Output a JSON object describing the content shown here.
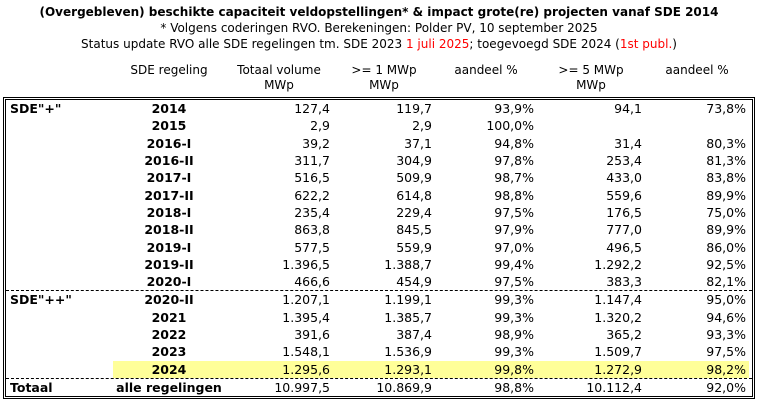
{
  "header": {
    "title": "(Overgebleven) beschikte capaciteit veldopstellingen* & impact grote(re) projecten vanaf SDE 2014",
    "subtitle": "* Volgens coderingen RVO. Berekeningen: Polder PV, 10 september 2025",
    "status_prefix": "Status update RVO alle SDE regelingen tm. SDE 2023 ",
    "status_date": "1 juli 2025",
    "status_mid": "; toegevoegd SDE 2024 (",
    "status_publ": "1st publ.",
    "status_suffix": ")"
  },
  "colors": {
    "highlight": "#ffff99",
    "accent_red": "#ff0000",
    "text": "#000000"
  },
  "table": {
    "columns": [
      {
        "label": "",
        "sub": ""
      },
      {
        "label": "SDE regeling",
        "sub": ""
      },
      {
        "label": "Totaal volume",
        "sub": "MWp"
      },
      {
        "label": ">= 1 MWp",
        "sub": "MWp"
      },
      {
        "label": "aandeel %",
        "sub": ""
      },
      {
        "label": ">= 5 MWp",
        "sub": "MWp"
      },
      {
        "label": "aandeel %",
        "sub": ""
      }
    ],
    "rows": [
      {
        "section": "SDE\"+\"",
        "regeling": "2014",
        "values": [
          "127,4",
          "119,7",
          "93,9%",
          "94,1",
          "73,8%"
        ]
      },
      {
        "section": "",
        "regeling": "2015",
        "values": [
          "2,9",
          "2,9",
          "100,0%",
          "",
          ""
        ]
      },
      {
        "section": "",
        "regeling": "2016-I",
        "values": [
          "39,2",
          "37,1",
          "94,8%",
          "31,4",
          "80,3%"
        ]
      },
      {
        "section": "",
        "regeling": "2016-II",
        "values": [
          "311,7",
          "304,9",
          "97,8%",
          "253,4",
          "81,3%"
        ]
      },
      {
        "section": "",
        "regeling": "2017-I",
        "values": [
          "516,5",
          "509,9",
          "98,7%",
          "433,0",
          "83,8%"
        ]
      },
      {
        "section": "",
        "regeling": "2017-II",
        "values": [
          "622,2",
          "614,8",
          "98,8%",
          "559,6",
          "89,9%"
        ]
      },
      {
        "section": "",
        "regeling": "2018-I",
        "values": [
          "235,4",
          "229,4",
          "97,5%",
          "176,5",
          "75,0%"
        ]
      },
      {
        "section": "",
        "regeling": "2018-II",
        "values": [
          "863,8",
          "845,5",
          "97,9%",
          "777,0",
          "89,9%"
        ]
      },
      {
        "section": "",
        "regeling": "2019-I",
        "values": [
          "577,5",
          "559,9",
          "97,0%",
          "496,5",
          "86,0%"
        ]
      },
      {
        "section": "",
        "regeling": "2019-II",
        "values": [
          "1.396,5",
          "1.388,7",
          "99,4%",
          "1.292,2",
          "92,5%"
        ]
      },
      {
        "section": "",
        "regeling": "2020-I",
        "values": [
          "466,6",
          "454,9",
          "97,5%",
          "383,3",
          "82,1%"
        ]
      },
      {
        "section": "SDE\"++\"",
        "regeling": "2020-II",
        "divider": true,
        "values": [
          "1.207,1",
          "1.199,1",
          "99,3%",
          "1.147,4",
          "95,0%"
        ]
      },
      {
        "section": "",
        "regeling": "2021",
        "values": [
          "1.395,4",
          "1.385,7",
          "99,3%",
          "1.320,2",
          "94,6%"
        ]
      },
      {
        "section": "",
        "regeling": "2022",
        "values": [
          "391,6",
          "387,4",
          "98,9%",
          "365,2",
          "93,3%"
        ]
      },
      {
        "section": "",
        "regeling": "2023",
        "values": [
          "1.548,1",
          "1.536,9",
          "99,3%",
          "1.509,7",
          "97,5%"
        ]
      },
      {
        "section": "",
        "regeling": "2024",
        "highlight": true,
        "values": [
          "1.295,6",
          "1.293,1",
          "99,8%",
          "1.272,9",
          "98,2%"
        ]
      },
      {
        "section": "Totaal",
        "regeling": "alle regelingen",
        "divider": true,
        "values": [
          "10.997,5",
          "10.869,9",
          "98,8%",
          "10.112,4",
          "92,0%"
        ]
      }
    ]
  }
}
